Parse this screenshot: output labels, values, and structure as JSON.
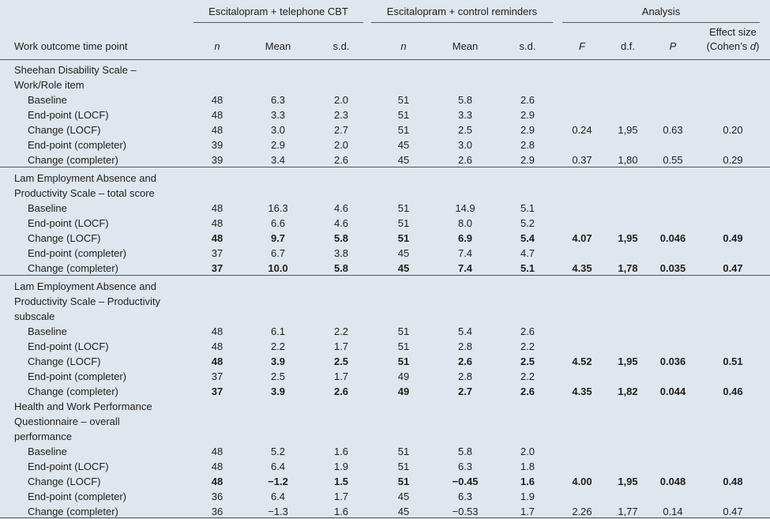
{
  "table": {
    "groups": [
      "Escitalopram + telephone CBT",
      "Escitalopram + control reminders",
      "Analysis"
    ],
    "row_header": "Work outcome time point",
    "columns": [
      "n",
      "Mean",
      "s.d.",
      "n",
      "Mean",
      "s.d.",
      "F",
      "d.f.",
      "P"
    ],
    "effect_size": {
      "line1": "Effect size",
      "line2_start": "(Cohen’s ",
      "line2_italic": "d",
      "line2_end": ")"
    },
    "sections": [
      {
        "title": [
          "Sheehan Disability Scale –",
          "Work/Role item"
        ],
        "rows": [
          {
            "label": "Baseline",
            "bold": false,
            "cells": [
              "48",
              "6.3",
              "2.0",
              "51",
              "5.8",
              "2.6"
            ]
          },
          {
            "label": "End-point (LOCF)",
            "bold": false,
            "cells": [
              "48",
              "3.3",
              "2.3",
              "51",
              "3.3",
              "2.9"
            ]
          },
          {
            "label": "Change (LOCF)",
            "bold": false,
            "cells": [
              "48",
              "3.0",
              "2.7",
              "51",
              "2.5",
              "2.9",
              "0.24",
              "1,95",
              "0.63",
              "0.20"
            ]
          },
          {
            "label": "End-point (completer)",
            "bold": false,
            "cells": [
              "39",
              "2.9",
              "2.0",
              "45",
              "3.0",
              "2.8"
            ]
          },
          {
            "label": "Change (completer)",
            "bold": false,
            "cells": [
              "39",
              "3.4",
              "2.6",
              "45",
              "2.6",
              "2.9",
              "0.37",
              "1,80",
              "0.55",
              "0.29"
            ]
          }
        ]
      },
      {
        "title": [
          "Lam Employment Absence and",
          "Productivity Scale – total score"
        ],
        "rows": [
          {
            "label": "Baseline",
            "bold": false,
            "cells": [
              "48",
              "16.3",
              "4.6",
              "51",
              "14.9",
              "5.1"
            ]
          },
          {
            "label": "End-point (LOCF)",
            "bold": false,
            "cells": [
              "48",
              "6.6",
              "4.6",
              "51",
              "8.0",
              "5.2"
            ]
          },
          {
            "label": "Change (LOCF)",
            "bold": true,
            "cells": [
              "48",
              "9.7",
              "5.8",
              "51",
              "6.9",
              "5.4",
              "4.07",
              "1,95",
              "0.046",
              "0.49"
            ]
          },
          {
            "label": "End-point (completer)",
            "bold": false,
            "cells": [
              "37",
              "6.7",
              "3.8",
              "45",
              "7.4",
              "4.7"
            ]
          },
          {
            "label": "Change (completer)",
            "bold": true,
            "cells": [
              "37",
              "10.0",
              "5.8",
              "45",
              "7.4",
              "5.1",
              "4.35",
              "1,78",
              "0.035",
              "0.47"
            ]
          }
        ]
      },
      {
        "title": [
          "Lam Employment Absence and",
          "Productivity Scale – Productivity",
          "subscale"
        ],
        "rows": [
          {
            "label": "Baseline",
            "bold": false,
            "cells": [
              "48",
              "6.1",
              "2.2",
              "51",
              "5.4",
              "2.6"
            ]
          },
          {
            "label": "End-point (LOCF)",
            "bold": false,
            "cells": [
              "48",
              "2.2",
              "1.7",
              "51",
              "2.8",
              "2.2"
            ]
          },
          {
            "label": "Change (LOCF)",
            "bold": true,
            "cells": [
              "48",
              "3.9",
              "2.5",
              "51",
              "2.6",
              "2.5",
              "4.52",
              "1,95",
              "0.036",
              "0.51"
            ]
          },
          {
            "label": "End-point (completer)",
            "bold": false,
            "cells": [
              "37",
              "2.5",
              "1.7",
              "49",
              "2.8",
              "2.2"
            ]
          },
          {
            "label": "Change (completer)",
            "bold": true,
            "cells": [
              "37",
              "3.9",
              "2.6",
              "49",
              "2.7",
              "2.6",
              "4.35",
              "1,82",
              "0.044",
              "0.46"
            ]
          }
        ]
      },
      {
        "title": [
          "Health and Work Performance",
          "Questionnaire – overall",
          "performance"
        ],
        "rows": [
          {
            "label": "Baseline",
            "bold": false,
            "cells": [
              "48",
              "5.2",
              "1.6",
              "51",
              "5.8",
              "2.0"
            ]
          },
          {
            "label": "End-point (LOCF)",
            "bold": false,
            "cells": [
              "48",
              "6.4",
              "1.9",
              "51",
              "6.3",
              "1.8"
            ]
          },
          {
            "label": "Change (LOCF)",
            "bold": true,
            "cells": [
              "48",
              "−1.2",
              "1.5",
              "51",
              "−0.45",
              "1.6",
              "4.00",
              "1,95",
              "0.048",
              "0.48"
            ]
          },
          {
            "label": "End-point (completer)",
            "bold": false,
            "cells": [
              "36",
              "6.4",
              "1.7",
              "45",
              "6.3",
              "1.9"
            ]
          },
          {
            "label": "Change (completer)",
            "bold": false,
            "cells": [
              "36",
              "−1.3",
              "1.6",
              "45",
              "−0.53",
              "1.7",
              "2.26",
              "1,77",
              "0.14",
              "0.47"
            ]
          }
        ]
      }
    ]
  }
}
